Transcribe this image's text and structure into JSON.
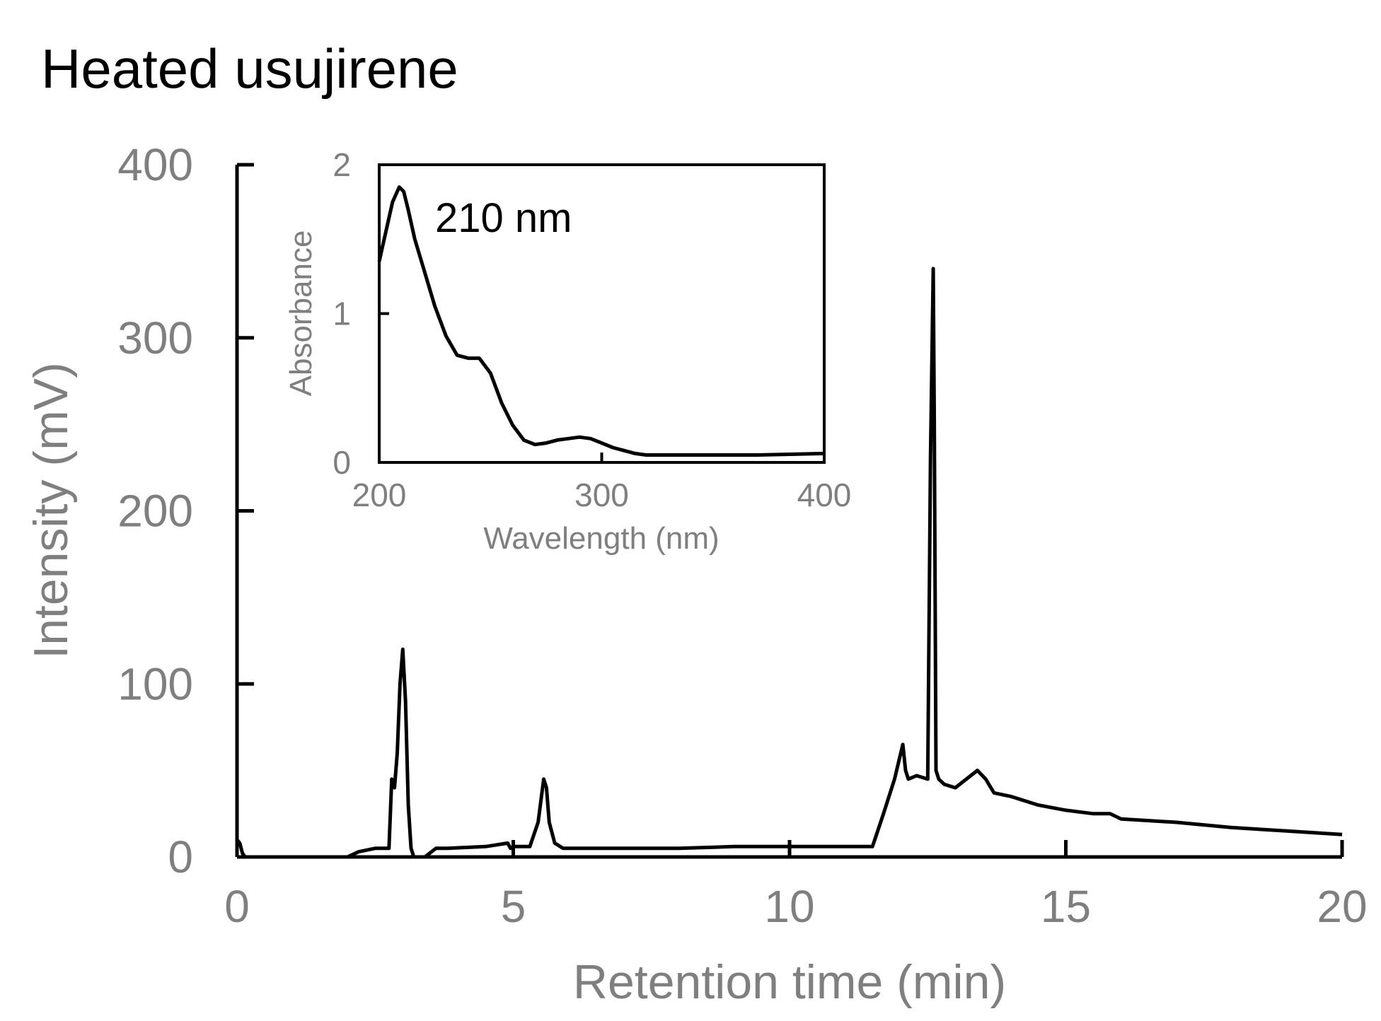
{
  "title": "Heated usujirene",
  "chart_data": [
    {
      "type": "line",
      "xlabel": "Retention time (min)",
      "ylabel": "Intensity (mV)",
      "xlim": [
        0,
        20
      ],
      "ylim": [
        0,
        400
      ],
      "xticks": [
        0,
        5,
        10,
        15,
        20
      ],
      "yticks": [
        0,
        100,
        200,
        300,
        400
      ],
      "grid": false,
      "series": [
        {
          "x": [
            0,
            0.05,
            0.1,
            0.15,
            0.2,
            0.3,
            1.0,
            2.0,
            2.2,
            2.5,
            2.75,
            2.8,
            2.85,
            2.9,
            2.95,
            3.0,
            3.05,
            3.1,
            3.15,
            3.2,
            3.3,
            3.4,
            3.6,
            3.8,
            4.5,
            4.9,
            4.95,
            5.0,
            5.3,
            5.45,
            5.55,
            5.6,
            5.65,
            5.75,
            5.9,
            6.5,
            8.0,
            9.0,
            10.0,
            11.0,
            11.5,
            11.7,
            11.9,
            12.05,
            12.1,
            12.15,
            12.3,
            12.5,
            12.55,
            12.6,
            12.62,
            12.65,
            12.7,
            12.8,
            13.0,
            13.2,
            13.4,
            13.55,
            13.7,
            14.0,
            14.5,
            15.0,
            15.5,
            15.8,
            16.0,
            17.0,
            18.0,
            19.0,
            20.0
          ],
          "values": [
            10,
            8,
            2,
            0,
            0,
            0,
            0,
            0,
            3,
            5,
            5,
            45,
            40,
            60,
            100,
            120,
            90,
            30,
            5,
            0,
            0,
            0,
            5,
            5,
            6,
            8,
            5,
            6,
            6,
            20,
            45,
            40,
            20,
            8,
            5,
            5,
            5,
            6,
            6,
            6,
            6,
            25,
            45,
            65,
            50,
            45,
            47,
            45,
            230,
            340,
            250,
            50,
            45,
            42,
            40,
            45,
            50,
            45,
            37,
            35,
            30,
            27,
            25,
            25,
            22,
            20,
            17,
            15,
            13
          ]
        }
      ]
    },
    {
      "type": "line",
      "xlabel": "Wavelength (nm)",
      "ylabel": "Absorbance",
      "xlim": [
        200,
        400
      ],
      "ylim": [
        0,
        2
      ],
      "xticks": [
        200,
        300,
        400
      ],
      "yticks": [
        0,
        1,
        2
      ],
      "annotation": "210 nm",
      "series": [
        {
          "x": [
            200,
            203,
            206,
            209,
            211,
            213,
            216,
            220,
            225,
            230,
            235,
            240,
            245,
            250,
            255,
            260,
            265,
            270,
            275,
            280,
            285,
            290,
            295,
            300,
            305,
            310,
            315,
            320,
            330,
            350,
            370,
            400
          ],
          "values": [
            1.35,
            1.55,
            1.75,
            1.85,
            1.82,
            1.7,
            1.5,
            1.3,
            1.05,
            0.85,
            0.72,
            0.7,
            0.7,
            0.6,
            0.4,
            0.25,
            0.15,
            0.12,
            0.13,
            0.15,
            0.16,
            0.17,
            0.16,
            0.13,
            0.1,
            0.08,
            0.06,
            0.05,
            0.05,
            0.05,
            0.05,
            0.06
          ]
        }
      ]
    }
  ]
}
